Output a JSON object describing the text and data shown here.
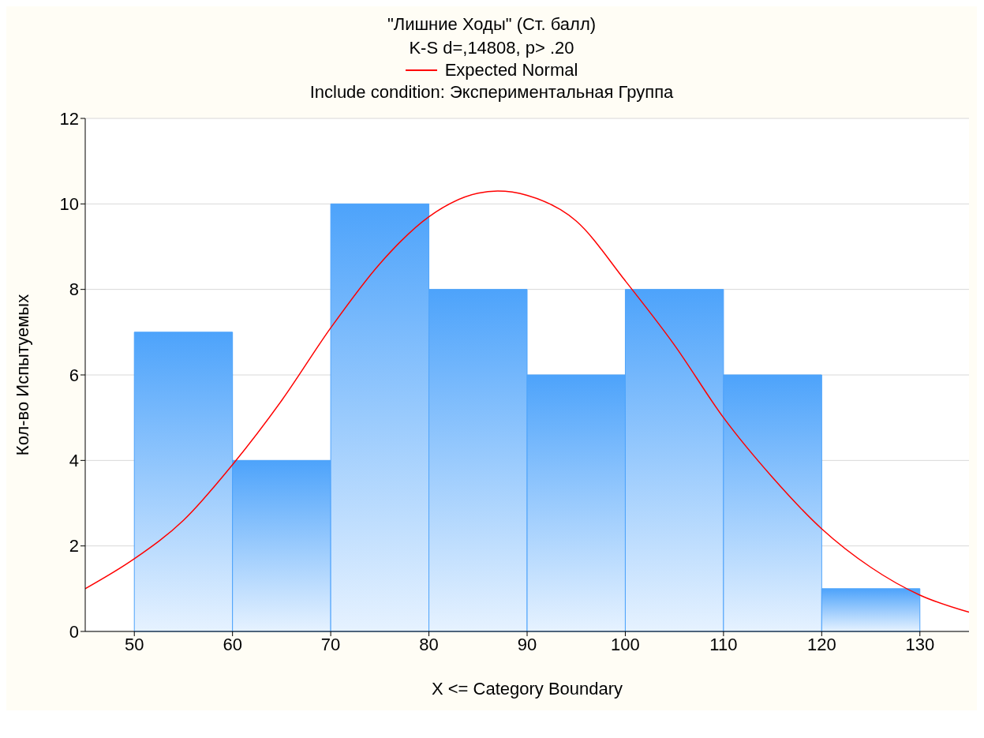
{
  "chart_data": {
    "type": "histogram",
    "title": "\"Лишние Ходы\" (Ст. балл)",
    "subtitle": "K-S d=,14808, p> .20",
    "annotations": [
      "Include condition: Экспериментальная Группа"
    ],
    "xlabel": "X <= Category Boundary",
    "ylabel": "Кол-во Испытуемых",
    "bins": [
      50,
      60,
      70,
      80,
      90,
      100,
      110,
      120,
      130
    ],
    "values": [
      7,
      4,
      10,
      8,
      6,
      8,
      6,
      1
    ],
    "color": "#4da3fb",
    "series": [
      {
        "type": "line",
        "name": "Expected Normal",
        "color": "#ff0000",
        "x": [
          45,
          50,
          55,
          60,
          65,
          70,
          75,
          80,
          85,
          87,
          90,
          95,
          100,
          105,
          110,
          115,
          120,
          125,
          130,
          135
        ],
        "values": [
          1.0,
          1.7,
          2.6,
          3.9,
          5.4,
          7.1,
          8.6,
          9.7,
          10.25,
          10.3,
          10.2,
          9.6,
          8.2,
          6.7,
          5.0,
          3.6,
          2.4,
          1.5,
          0.85,
          0.45
        ]
      }
    ],
    "xlim": [
      45,
      135
    ],
    "xticks": [
      50,
      60,
      70,
      80,
      90,
      100,
      110,
      120,
      130
    ],
    "ylim": [
      0,
      12
    ],
    "yticks": [
      0,
      2,
      4,
      6,
      8,
      10,
      12
    ],
    "grid": "y",
    "legend": "top",
    "marker": "none",
    "line_style": "solid"
  }
}
